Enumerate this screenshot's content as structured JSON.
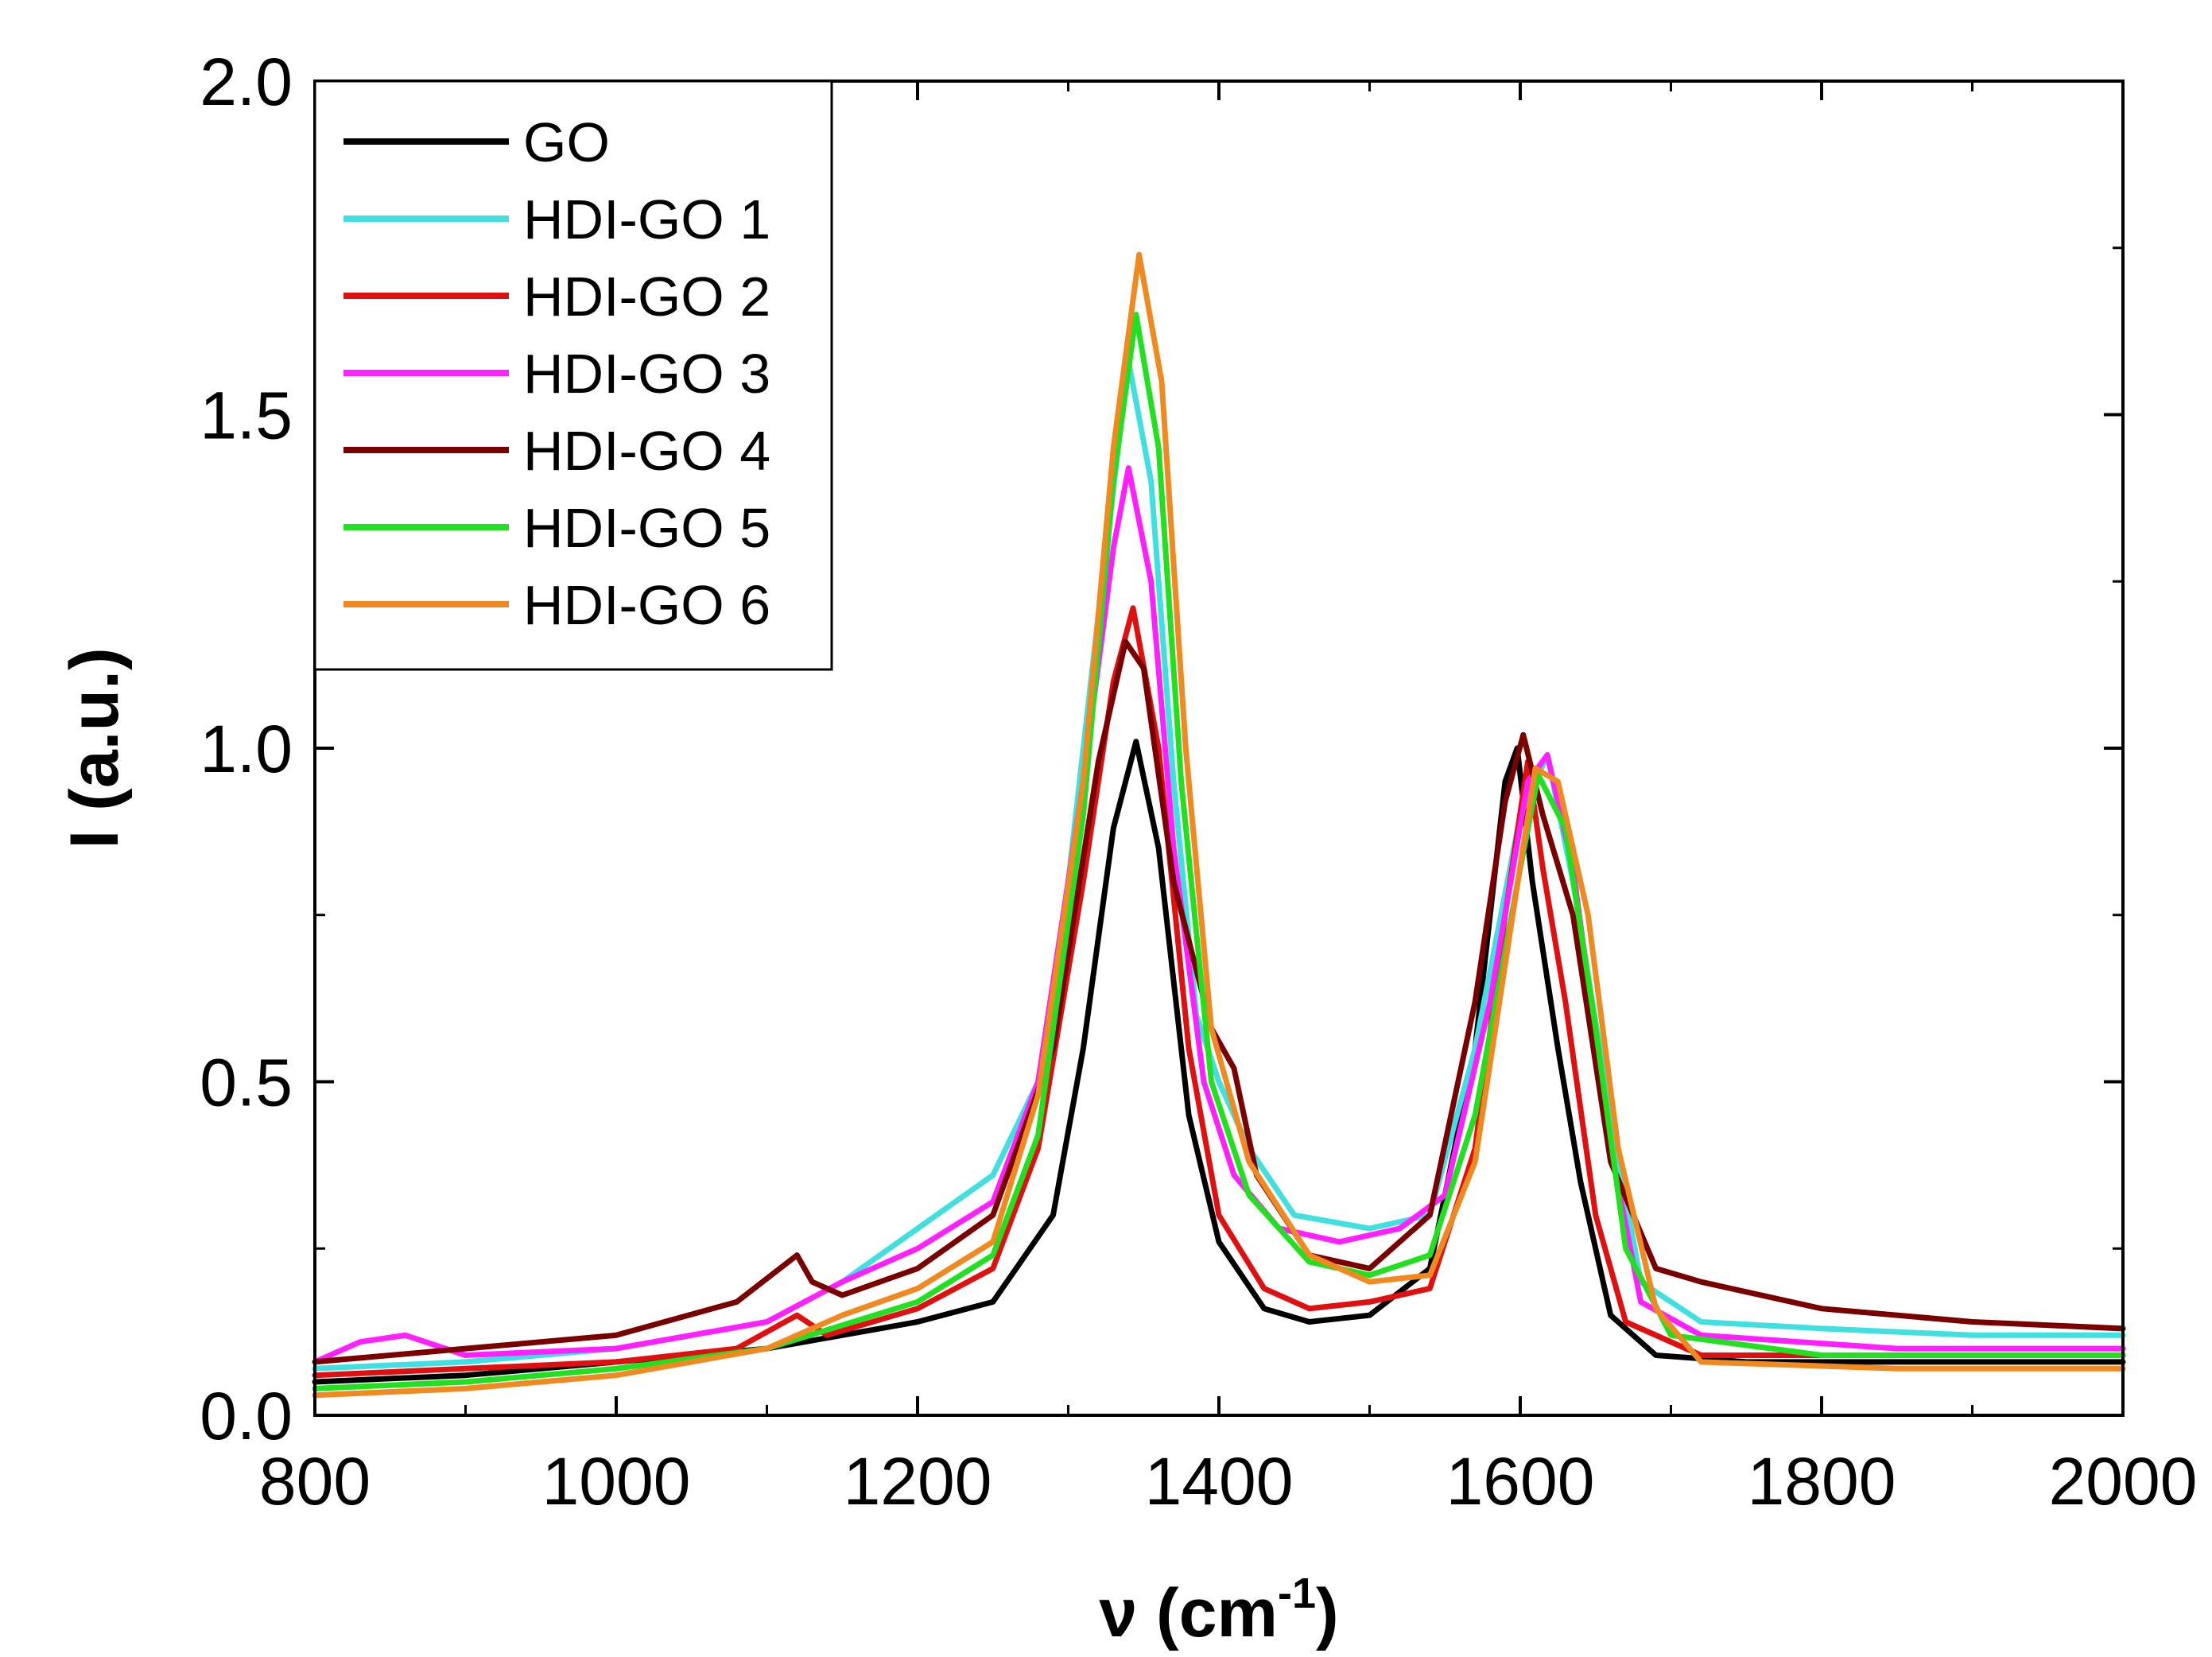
{
  "chart_data": {
    "type": "line",
    "title": "",
    "xlabel": "ν (cm",
    "xlabel_superscript": "-1",
    "xlabel_suffix": ")",
    "ylabel": "I (a.u.)",
    "xlim": [
      800,
      2000
    ],
    "ylim": [
      0.0,
      2.0
    ],
    "xticks": [
      800,
      1000,
      1200,
      1400,
      1600,
      1800,
      2000
    ],
    "xtick_labels": [
      "800",
      "1000",
      "1200",
      "1400",
      "1600",
      "1800",
      "2000"
    ],
    "yticks": [
      0.0,
      0.5,
      1.0,
      1.5,
      2.0
    ],
    "ytick_labels": [
      "0.0",
      "0.5",
      "1.0",
      "1.5",
      "2.0"
    ],
    "grid": false,
    "legend_position": "top-left",
    "series": [
      {
        "name": "GO",
        "color": "#000000",
        "points": [
          [
            800,
            0.05
          ],
          [
            900,
            0.06
          ],
          [
            1000,
            0.08
          ],
          [
            1100,
            0.1
          ],
          [
            1200,
            0.14
          ],
          [
            1250,
            0.17
          ],
          [
            1290,
            0.3
          ],
          [
            1310,
            0.55
          ],
          [
            1330,
            0.88
          ],
          [
            1345,
            1.01
          ],
          [
            1360,
            0.85
          ],
          [
            1380,
            0.45
          ],
          [
            1400,
            0.26
          ],
          [
            1430,
            0.16
          ],
          [
            1460,
            0.14
          ],
          [
            1500,
            0.15
          ],
          [
            1540,
            0.22
          ],
          [
            1570,
            0.55
          ],
          [
            1590,
            0.95
          ],
          [
            1598,
            1.0
          ],
          [
            1608,
            0.8
          ],
          [
            1625,
            0.55
          ],
          [
            1640,
            0.35
          ],
          [
            1660,
            0.15
          ],
          [
            1690,
            0.09
          ],
          [
            1750,
            0.08
          ],
          [
            1850,
            0.08
          ],
          [
            1950,
            0.08
          ],
          [
            2000,
            0.08
          ]
        ]
      },
      {
        "name": "HDI-GO 1",
        "color": "#40e0e0",
        "points": [
          [
            800,
            0.07
          ],
          [
            900,
            0.08
          ],
          [
            1000,
            0.1
          ],
          [
            1100,
            0.14
          ],
          [
            1150,
            0.2
          ],
          [
            1200,
            0.28
          ],
          [
            1250,
            0.36
          ],
          [
            1280,
            0.5
          ],
          [
            1300,
            0.8
          ],
          [
            1320,
            1.2
          ],
          [
            1340,
            1.58
          ],
          [
            1355,
            1.4
          ],
          [
            1370,
            0.95
          ],
          [
            1385,
            0.6
          ],
          [
            1400,
            0.5
          ],
          [
            1420,
            0.4
          ],
          [
            1450,
            0.3
          ],
          [
            1500,
            0.28
          ],
          [
            1540,
            0.3
          ],
          [
            1570,
            0.55
          ],
          [
            1600,
            0.9
          ],
          [
            1618,
            0.99
          ],
          [
            1635,
            0.8
          ],
          [
            1660,
            0.45
          ],
          [
            1680,
            0.2
          ],
          [
            1720,
            0.14
          ],
          [
            1800,
            0.13
          ],
          [
            1900,
            0.12
          ],
          [
            2000,
            0.12
          ]
        ]
      },
      {
        "name": "HDI-GO 2",
        "color": "#e01010",
        "points": [
          [
            800,
            0.06
          ],
          [
            900,
            0.07
          ],
          [
            1000,
            0.08
          ],
          [
            1080,
            0.1
          ],
          [
            1120,
            0.15
          ],
          [
            1140,
            0.12
          ],
          [
            1200,
            0.16
          ],
          [
            1250,
            0.22
          ],
          [
            1280,
            0.4
          ],
          [
            1310,
            0.8
          ],
          [
            1330,
            1.1
          ],
          [
            1343,
            1.21
          ],
          [
            1360,
            1.0
          ],
          [
            1380,
            0.55
          ],
          [
            1400,
            0.3
          ],
          [
            1430,
            0.19
          ],
          [
            1460,
            0.16
          ],
          [
            1500,
            0.17
          ],
          [
            1540,
            0.19
          ],
          [
            1570,
            0.4
          ],
          [
            1590,
            0.75
          ],
          [
            1605,
            0.98
          ],
          [
            1615,
            0.82
          ],
          [
            1630,
            0.62
          ],
          [
            1650,
            0.3
          ],
          [
            1670,
            0.14
          ],
          [
            1720,
            0.09
          ],
          [
            1850,
            0.09
          ],
          [
            2000,
            0.09
          ]
        ]
      },
      {
        "name": "HDI-GO 3",
        "color": "#ff20ff",
        "points": [
          [
            800,
            0.08
          ],
          [
            830,
            0.11
          ],
          [
            860,
            0.12
          ],
          [
            900,
            0.09
          ],
          [
            1000,
            0.1
          ],
          [
            1100,
            0.14
          ],
          [
            1150,
            0.2
          ],
          [
            1200,
            0.25
          ],
          [
            1250,
            0.32
          ],
          [
            1280,
            0.5
          ],
          [
            1310,
            0.95
          ],
          [
            1330,
            1.3
          ],
          [
            1340,
            1.42
          ],
          [
            1355,
            1.25
          ],
          [
            1370,
            0.85
          ],
          [
            1390,
            0.5
          ],
          [
            1410,
            0.36
          ],
          [
            1440,
            0.28
          ],
          [
            1480,
            0.26
          ],
          [
            1520,
            0.28
          ],
          [
            1550,
            0.33
          ],
          [
            1580,
            0.62
          ],
          [
            1605,
            0.95
          ],
          [
            1618,
            0.99
          ],
          [
            1635,
            0.82
          ],
          [
            1660,
            0.4
          ],
          [
            1680,
            0.17
          ],
          [
            1720,
            0.12
          ],
          [
            1850,
            0.1
          ],
          [
            2000,
            0.1
          ]
        ]
      },
      {
        "name": "HDI-GO 4",
        "color": "#7a0000",
        "points": [
          [
            800,
            0.08
          ],
          [
            900,
            0.1
          ],
          [
            1000,
            0.12
          ],
          [
            1080,
            0.17
          ],
          [
            1120,
            0.24
          ],
          [
            1130,
            0.2
          ],
          [
            1150,
            0.18
          ],
          [
            1200,
            0.22
          ],
          [
            1250,
            0.3
          ],
          [
            1290,
            0.55
          ],
          [
            1320,
            0.98
          ],
          [
            1338,
            1.16
          ],
          [
            1350,
            1.12
          ],
          [
            1370,
            0.8
          ],
          [
            1395,
            0.58
          ],
          [
            1410,
            0.52
          ],
          [
            1425,
            0.36
          ],
          [
            1460,
            0.24
          ],
          [
            1500,
            0.22
          ],
          [
            1540,
            0.3
          ],
          [
            1570,
            0.62
          ],
          [
            1590,
            0.92
          ],
          [
            1602,
            1.02
          ],
          [
            1615,
            0.9
          ],
          [
            1635,
            0.75
          ],
          [
            1660,
            0.38
          ],
          [
            1690,
            0.22
          ],
          [
            1720,
            0.2
          ],
          [
            1800,
            0.16
          ],
          [
            1900,
            0.14
          ],
          [
            2000,
            0.13
          ]
        ]
      },
      {
        "name": "HDI-GO 5",
        "color": "#20e020",
        "points": [
          [
            800,
            0.04
          ],
          [
            900,
            0.05
          ],
          [
            1000,
            0.07
          ],
          [
            1100,
            0.1
          ],
          [
            1200,
            0.17
          ],
          [
            1250,
            0.24
          ],
          [
            1280,
            0.42
          ],
          [
            1310,
            0.9
          ],
          [
            1330,
            1.4
          ],
          [
            1345,
            1.65
          ],
          [
            1360,
            1.45
          ],
          [
            1375,
            0.95
          ],
          [
            1395,
            0.5
          ],
          [
            1420,
            0.33
          ],
          [
            1460,
            0.23
          ],
          [
            1500,
            0.21
          ],
          [
            1540,
            0.24
          ],
          [
            1570,
            0.45
          ],
          [
            1600,
            0.82
          ],
          [
            1612,
            0.96
          ],
          [
            1630,
            0.88
          ],
          [
            1650,
            0.58
          ],
          [
            1670,
            0.25
          ],
          [
            1700,
            0.12
          ],
          [
            1800,
            0.09
          ],
          [
            2000,
            0.09
          ]
        ]
      },
      {
        "name": "HDI-GO 6",
        "color": "#f08a20",
        "points": [
          [
            800,
            0.03
          ],
          [
            900,
            0.04
          ],
          [
            1000,
            0.06
          ],
          [
            1100,
            0.1
          ],
          [
            1150,
            0.15
          ],
          [
            1200,
            0.19
          ],
          [
            1250,
            0.26
          ],
          [
            1280,
            0.48
          ],
          [
            1310,
            0.95
          ],
          [
            1330,
            1.45
          ],
          [
            1347,
            1.74
          ],
          [
            1362,
            1.55
          ],
          [
            1378,
            1.0
          ],
          [
            1395,
            0.58
          ],
          [
            1420,
            0.38
          ],
          [
            1460,
            0.24
          ],
          [
            1500,
            0.2
          ],
          [
            1540,
            0.21
          ],
          [
            1570,
            0.38
          ],
          [
            1595,
            0.75
          ],
          [
            1610,
            0.97
          ],
          [
            1625,
            0.95
          ],
          [
            1645,
            0.75
          ],
          [
            1665,
            0.4
          ],
          [
            1690,
            0.16
          ],
          [
            1720,
            0.08
          ],
          [
            1850,
            0.07
          ],
          [
            2000,
            0.07
          ]
        ]
      }
    ]
  }
}
